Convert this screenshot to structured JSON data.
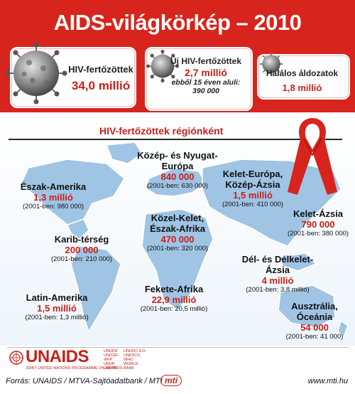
{
  "title": "AIDS-világkörkép – 2010",
  "cards": [
    {
      "label": "HIV-fertőzöttek",
      "value": "34,0 millió"
    },
    {
      "label": "Új HIV-fertőzöttek",
      "value": "2,7 millió",
      "sub_label": "ebből 15 éven aluli:",
      "sub_value": "390 000"
    },
    {
      "label": "Halálos áldozatok",
      "value": "1,8 millió"
    }
  ],
  "section_title": "HIV-fertőzöttek régiónként",
  "regions": [
    {
      "name": "Észak-Amerika",
      "value": "1,3 millió",
      "prev": "(2001-ben: 980 000)"
    },
    {
      "name": "Közép- és Nyugat-Európa",
      "value": "840 000",
      "prev": "(2001-ben: 630 000)"
    },
    {
      "name": "Kelet-Európa, Közép-Ázsia",
      "value": "1,5 millió",
      "prev": "(2001-ben: 410 000)"
    },
    {
      "name": "Kelet-Ázsia",
      "value": "790 000",
      "prev": "(2001-ben: 380 000)"
    },
    {
      "name": "Karib-térség",
      "value": "200 000",
      "prev": "(2001-ben: 210 000)"
    },
    {
      "name": "Közel-Kelet, Észak-Afrika",
      "value": "470 000",
      "prev": "(2001-ben: 320 000)"
    },
    {
      "name": "Dél- és Délkelet-Ázsia",
      "value": "4 millió",
      "prev": "(2001-ben: 3,8 millió)"
    },
    {
      "name": "Latin-Amerika",
      "value": "1,5 millió",
      "prev": "(2001-ben: 1,3 millió)"
    },
    {
      "name": "Fekete-Afrika",
      "value": "22,9 millió",
      "prev": "(2001-ben: 20,5 millió)"
    },
    {
      "name": "Ausztrália, Óceánia",
      "value": "54 000",
      "prev": "(2001-ben: 41 000)"
    }
  ],
  "footer": {
    "logo_text": "UNAIDS",
    "logo_fine_print": "JOINT UNITED NATIONS PROGRAMME ON HIV/AIDS",
    "partners_col1": "UNHCR UNICEF WFP UNDP UNFPA",
    "partners_col2": "UNODC ILO UNESCO WHO WORLD BANK",
    "source": "Forrás: UNAIDS / MTVA-Sajtóadatbank / MTI",
    "mti_logo": "mti",
    "url": "www.mti.hu"
  },
  "colors": {
    "brand_red": "#d7241c",
    "value_red": "#c8201a",
    "map_blue": "#9fc4e4"
  }
}
